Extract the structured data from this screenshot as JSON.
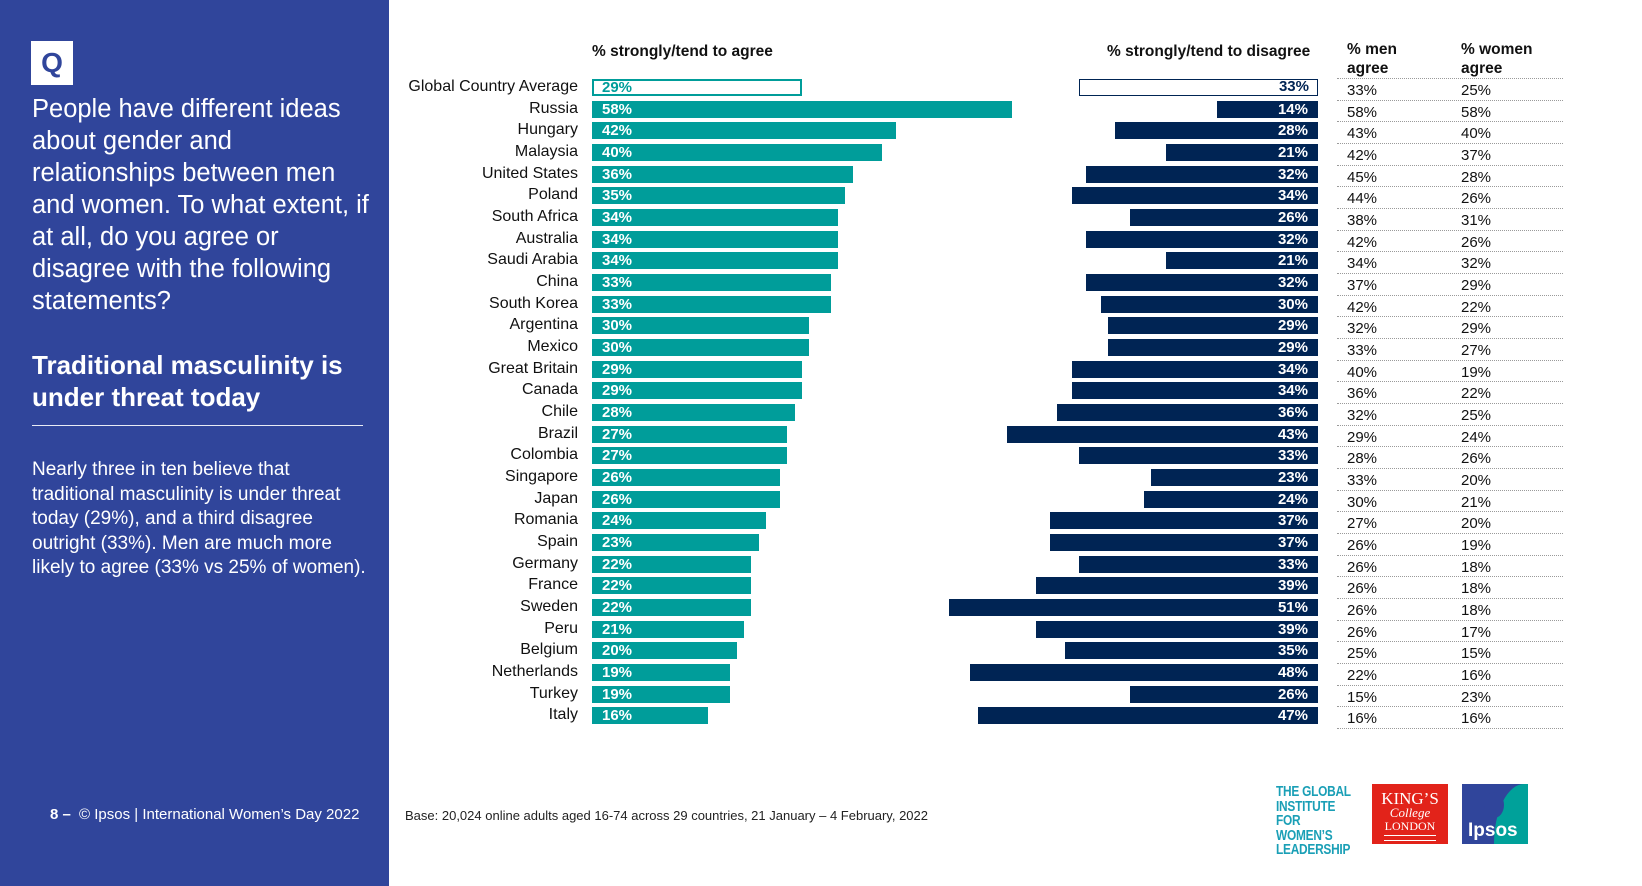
{
  "sidebar": {
    "q_label": "Q",
    "question": "People have different ideas about gender and relationships between men and women. To what extent, if at all, do you agree or disagree  with the following statements?",
    "statement": "Traditional masculinity is under threat today",
    "summary": "Nearly three in ten believe that traditional masculinity is under threat today (29%), and a third disagree outright (33%). Men are much more likely to agree (33% vs 25% of women).",
    "footer_page": "8 –",
    "footer_text": "© Ipsos | International Women’s Day 2022"
  },
  "base_note": "Base: 20,024 online adults aged 16-74 across 29 countries, 21 January – 4 February, 2022",
  "logos": {
    "giwl": "THE GLOBAL INSTITUTE FOR WOMEN’S LEADERSHIP",
    "kcl_line1": "KING’S",
    "kcl_line2": "College",
    "kcl_line3": "LONDON",
    "ipsos": "Ipsos"
  },
  "colors": {
    "sidebar": "#30459b",
    "agree": "#009d9a",
    "disagree": "#002454"
  },
  "chart_data": {
    "type": "bar",
    "title": "Traditional masculinity is under threat today",
    "headers": {
      "agree": "% strongly/tend to agree",
      "disagree": "% strongly/tend to disagree",
      "men": "% men agree",
      "women": "% women agree"
    },
    "categories": [
      "Global Country Average",
      "Russia",
      "Hungary",
      "Malaysia",
      "United States",
      "Poland",
      "South Africa",
      "Australia",
      "Saudi Arabia",
      "China",
      "South Korea",
      "Argentina",
      "Mexico",
      "Great Britain",
      "Canada",
      "Chile",
      "Brazil",
      "Colombia",
      "Singapore",
      "Japan",
      "Romania",
      "Spain",
      "Germany",
      "France",
      "Sweden",
      "Peru",
      "Belgium",
      "Netherlands",
      "Turkey",
      "Italy"
    ],
    "series": [
      {
        "name": "% strongly/tend to agree",
        "values": [
          29,
          58,
          42,
          40,
          36,
          35,
          34,
          34,
          34,
          33,
          33,
          30,
          30,
          29,
          29,
          28,
          27,
          27,
          26,
          26,
          24,
          23,
          22,
          22,
          22,
          21,
          20,
          19,
          19,
          16
        ]
      },
      {
        "name": "% strongly/tend to disagree",
        "values": [
          33,
          14,
          28,
          21,
          32,
          34,
          26,
          32,
          21,
          32,
          30,
          29,
          29,
          34,
          34,
          36,
          43,
          33,
          23,
          24,
          37,
          37,
          33,
          39,
          51,
          39,
          35,
          48,
          26,
          47
        ]
      },
      {
        "name": "% men agree",
        "values": [
          33,
          58,
          43,
          42,
          45,
          44,
          38,
          42,
          34,
          37,
          42,
          32,
          33,
          40,
          36,
          32,
          29,
          28,
          33,
          30,
          27,
          26,
          26,
          26,
          26,
          26,
          25,
          22,
          15,
          16
        ]
      },
      {
        "name": "% women agree",
        "values": [
          25,
          58,
          40,
          37,
          28,
          26,
          31,
          26,
          32,
          29,
          22,
          29,
          27,
          19,
          22,
          25,
          24,
          26,
          20,
          21,
          20,
          19,
          18,
          18,
          18,
          17,
          15,
          16,
          23,
          16
        ]
      }
    ],
    "unit": "%",
    "legend": "none"
  }
}
